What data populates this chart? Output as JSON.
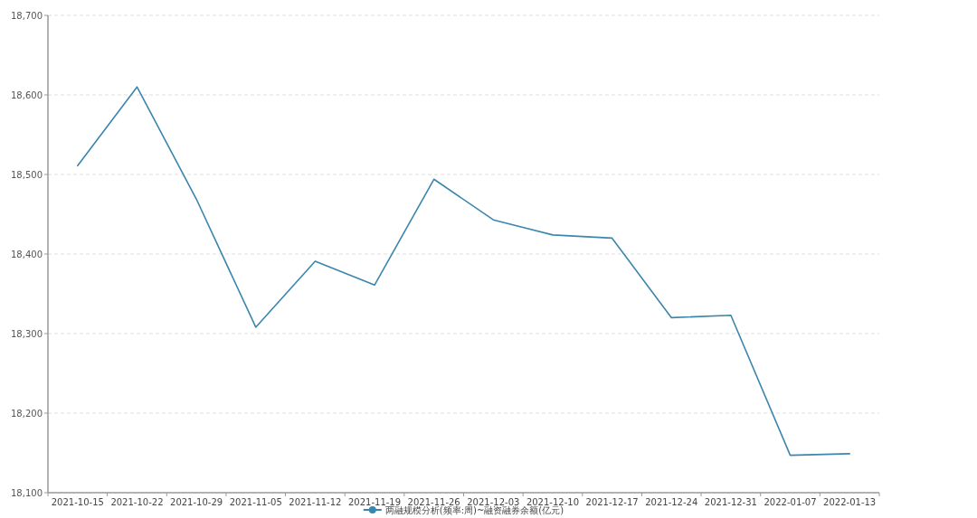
{
  "chart_data": {
    "type": "line",
    "categories": [
      "2021-10-15",
      "2021-10-22",
      "2021-10-29",
      "2021-11-05",
      "2021-11-12",
      "2021-11-19",
      "2021-11-26",
      "2021-12-03",
      "2021-12-10",
      "2021-12-17",
      "2021-12-24",
      "2021-12-31",
      "2022-01-07",
      "2022-01-13"
    ],
    "series": [
      {
        "name": "两融规模分析(频率:周)~融资融券余额(亿元)",
        "color": "#3b86ac",
        "values": [
          18511,
          18610,
          18469,
          18308,
          18391,
          18361,
          18494,
          18443,
          18424,
          18420,
          18320,
          18323,
          18147,
          18149
        ]
      }
    ],
    "ylim": [
      18100,
      18700
    ],
    "yticks": [
      {
        "value": 18100,
        "label": "18,100"
      },
      {
        "value": 18200,
        "label": "18,200"
      },
      {
        "value": 18300,
        "label": "18,300"
      },
      {
        "value": 18400,
        "label": "18,400"
      },
      {
        "value": 18500,
        "label": "18,500"
      },
      {
        "value": 18600,
        "label": "18,600"
      },
      {
        "value": 18700,
        "label": "18,700"
      }
    ],
    "grid": "y",
    "legend": "bottom",
    "line_style": "solid"
  }
}
